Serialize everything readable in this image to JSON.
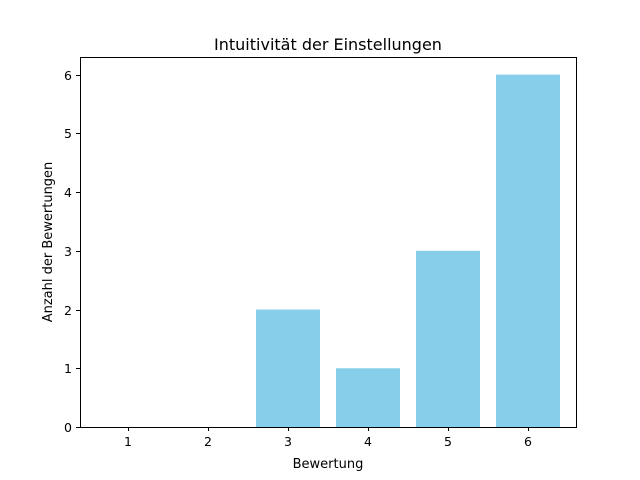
{
  "chart_data": {
    "type": "bar",
    "title": "Intuitivität der Einstellungen",
    "xlabel": "Bewertung",
    "ylabel": "Anzahl der Bewertungen",
    "categories": [
      "1",
      "2",
      "3",
      "4",
      "5",
      "6"
    ],
    "values": [
      0,
      0,
      2,
      1,
      3,
      6
    ],
    "yticks": [
      "0",
      "1",
      "2",
      "3",
      "4",
      "5",
      "6"
    ],
    "ylim": [
      0,
      6.3
    ],
    "bar_color": "#87ceeb",
    "grid": false,
    "legend": "none"
  }
}
